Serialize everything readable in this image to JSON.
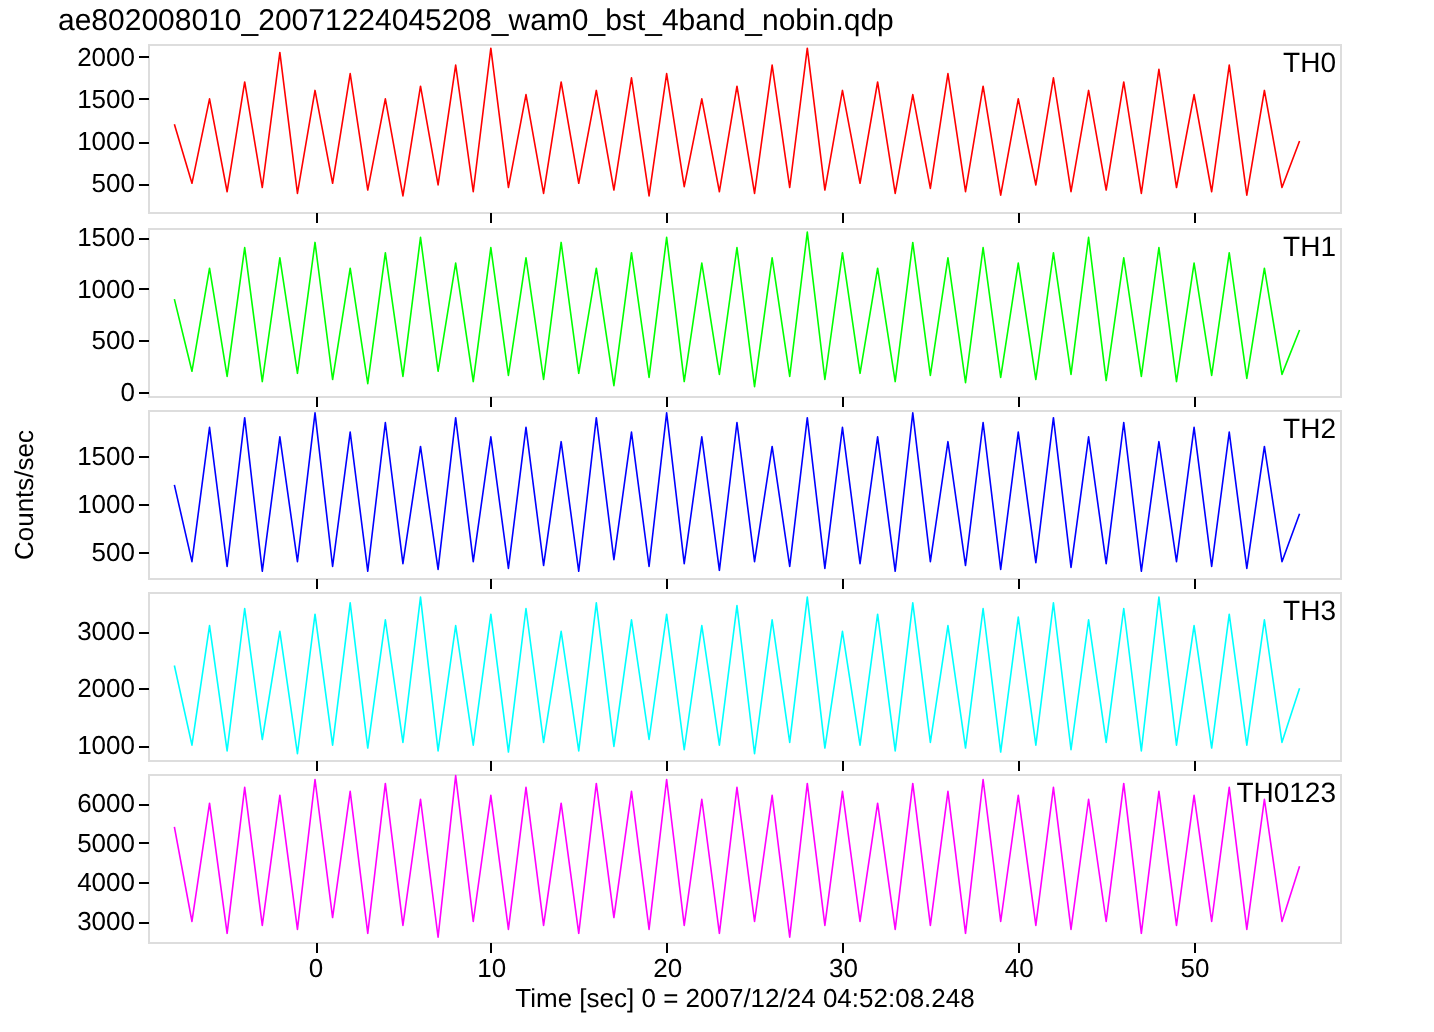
{
  "chart_data": [
    {
      "type": "line",
      "title": "ae802008010_20071224045208_wam0_bst_4band_nobin.qdp",
      "x": [
        -8,
        -7,
        -6,
        -5,
        -4,
        -3,
        -2,
        -1,
        0,
        1,
        2,
        3,
        4,
        5,
        6,
        7,
        8,
        9,
        10,
        11,
        12,
        13,
        14,
        15,
        16,
        17,
        18,
        19,
        20,
        21,
        22,
        23,
        24,
        25,
        26,
        27,
        28,
        29,
        30,
        31,
        32,
        33,
        34,
        35,
        36,
        37,
        38,
        39,
        40,
        41,
        42,
        43,
        44,
        45,
        46,
        47,
        48,
        49,
        50,
        51,
        52,
        53,
        54,
        55,
        56
      ],
      "xlim": [
        -9.5,
        58.3
      ],
      "xticks": [
        0,
        10,
        20,
        30,
        40,
        50
      ],
      "ylim": [
        160,
        2150
      ],
      "yticks": [
        500,
        1000,
        1500,
        2000
      ],
      "tick_labels": "y",
      "grid": false,
      "legend": false,
      "series": [
        {
          "name": "TH0",
          "color": "#ff0000",
          "values": [
            1200,
            500,
            1500,
            400,
            1700,
            450,
            2050,
            380,
            1600,
            500,
            1800,
            420,
            1500,
            350,
            1650,
            480,
            1900,
            400,
            2100,
            450,
            1550,
            380,
            1700,
            500,
            1600,
            420,
            1750,
            350,
            1800,
            460,
            1500,
            400,
            1650,
            380,
            1900,
            450,
            2100,
            420,
            1600,
            500,
            1700,
            380,
            1550,
            440,
            1800,
            400,
            1650,
            360,
            1500,
            480,
            1750,
            400,
            1600,
            420,
            1700,
            380,
            1850,
            450,
            1550,
            400,
            1900,
            360,
            1600,
            450,
            1000
          ]
        }
      ]
    },
    {
      "type": "line",
      "x": [
        -8,
        -7,
        -6,
        -5,
        -4,
        -3,
        -2,
        -1,
        0,
        1,
        2,
        3,
        4,
        5,
        6,
        7,
        8,
        9,
        10,
        11,
        12,
        13,
        14,
        15,
        16,
        17,
        18,
        19,
        20,
        21,
        22,
        23,
        24,
        25,
        26,
        27,
        28,
        29,
        30,
        31,
        32,
        33,
        34,
        35,
        36,
        37,
        38,
        39,
        40,
        41,
        42,
        43,
        44,
        45,
        46,
        47,
        48,
        49,
        50,
        51,
        52,
        53,
        54,
        55,
        56
      ],
      "xlim": [
        -9.5,
        58.3
      ],
      "xticks": [
        0,
        10,
        20,
        30,
        40,
        50
      ],
      "ylim": [
        -40,
        1590
      ],
      "yticks": [
        0,
        500,
        1000,
        1500
      ],
      "tick_labels": "y",
      "grid": false,
      "legend": false,
      "series": [
        {
          "name": "TH1",
          "color": "#00ff00",
          "values": [
            900,
            200,
            1200,
            150,
            1400,
            100,
            1300,
            180,
            1450,
            120,
            1200,
            80,
            1350,
            150,
            1500,
            200,
            1250,
            100,
            1400,
            160,
            1300,
            120,
            1450,
            180,
            1200,
            60,
            1350,
            140,
            1500,
            100,
            1250,
            170,
            1400,
            50,
            1300,
            150,
            1550,
            120,
            1350,
            180,
            1200,
            100,
            1450,
            160,
            1300,
            90,
            1400,
            140,
            1250,
            120,
            1350,
            170,
            1500,
            110,
            1300,
            150,
            1400,
            100,
            1250,
            160,
            1350,
            130,
            1200,
            170,
            600
          ]
        }
      ]
    },
    {
      "type": "line",
      "ylabel": "Counts/sec",
      "x": [
        -8,
        -7,
        -6,
        -5,
        -4,
        -3,
        -2,
        -1,
        0,
        1,
        2,
        3,
        4,
        5,
        6,
        7,
        8,
        9,
        10,
        11,
        12,
        13,
        14,
        15,
        16,
        17,
        18,
        19,
        20,
        21,
        22,
        23,
        24,
        25,
        26,
        27,
        28,
        29,
        30,
        31,
        32,
        33,
        34,
        35,
        36,
        37,
        38,
        39,
        40,
        41,
        42,
        43,
        44,
        45,
        46,
        47,
        48,
        49,
        50,
        51,
        52,
        53,
        54,
        55,
        56
      ],
      "xlim": [
        -9.5,
        58.3
      ],
      "xticks": [
        0,
        10,
        20,
        30,
        40,
        50
      ],
      "ylim": [
        230,
        1980
      ],
      "yticks": [
        500,
        1000,
        1500
      ],
      "tick_labels": "y",
      "grid": false,
      "legend": false,
      "series": [
        {
          "name": "TH2",
          "color": "#0000ff",
          "values": [
            1200,
            400,
            1800,
            350,
            1900,
            300,
            1700,
            400,
            1950,
            350,
            1750,
            300,
            1850,
            380,
            1600,
            320,
            1900,
            400,
            1700,
            330,
            1800,
            360,
            1650,
            300,
            1900,
            420,
            1750,
            350,
            1950,
            380,
            1700,
            310,
            1850,
            400,
            1600,
            350,
            1900,
            330,
            1800,
            380,
            1700,
            300,
            1950,
            400,
            1650,
            360,
            1850,
            320,
            1750,
            390,
            1900,
            340,
            1700,
            380,
            1850,
            300,
            1650,
            400,
            1800,
            350,
            1750,
            330,
            1600,
            400,
            900
          ]
        }
      ]
    },
    {
      "type": "line",
      "x": [
        -8,
        -7,
        -6,
        -5,
        -4,
        -3,
        -2,
        -1,
        0,
        1,
        2,
        3,
        4,
        5,
        6,
        7,
        8,
        9,
        10,
        11,
        12,
        13,
        14,
        15,
        16,
        17,
        18,
        19,
        20,
        21,
        22,
        23,
        24,
        25,
        26,
        27,
        28,
        29,
        30,
        31,
        32,
        33,
        34,
        35,
        36,
        37,
        38,
        39,
        40,
        41,
        42,
        43,
        44,
        45,
        46,
        47,
        48,
        49,
        50,
        51,
        52,
        53,
        54,
        55,
        56
      ],
      "xlim": [
        -9.5,
        58.3
      ],
      "xticks": [
        0,
        10,
        20,
        30,
        40,
        50
      ],
      "ylim": [
        740,
        3690
      ],
      "yticks": [
        1000,
        2000,
        3000
      ],
      "tick_labels": "y",
      "grid": false,
      "legend": false,
      "series": [
        {
          "name": "TH3",
          "color": "#00ffff",
          "values": [
            2400,
            1000,
            3100,
            900,
            3400,
            1100,
            3000,
            850,
            3300,
            1000,
            3500,
            950,
            3200,
            1050,
            3600,
            900,
            3100,
            1000,
            3300,
            880,
            3400,
            1050,
            3000,
            900,
            3500,
            980,
            3200,
            1100,
            3300,
            920,
            3100,
            1000,
            3450,
            850,
            3200,
            1050,
            3600,
            950,
            3000,
            1000,
            3300,
            900,
            3500,
            1050,
            3100,
            950,
            3400,
            880,
            3250,
            1000,
            3500,
            920,
            3200,
            1050,
            3400,
            900,
            3600,
            1000,
            3100,
            950,
            3300,
            1000,
            3200,
            1050,
            2000
          ]
        }
      ]
    },
    {
      "type": "line",
      "xlabel": "Time [sec] 0 = 2007/12/24 04:52:08.248",
      "x": [
        -8,
        -7,
        -6,
        -5,
        -4,
        -3,
        -2,
        -1,
        0,
        1,
        2,
        3,
        4,
        5,
        6,
        7,
        8,
        9,
        10,
        11,
        12,
        13,
        14,
        15,
        16,
        17,
        18,
        19,
        20,
        21,
        22,
        23,
        24,
        25,
        26,
        27,
        28,
        29,
        30,
        31,
        32,
        33,
        34,
        35,
        36,
        37,
        38,
        39,
        40,
        41,
        42,
        43,
        44,
        45,
        46,
        47,
        48,
        49,
        50,
        51,
        52,
        53,
        54,
        55,
        56
      ],
      "xlim": [
        -9.5,
        58.3
      ],
      "xticks": [
        0,
        10,
        20,
        30,
        40,
        50
      ],
      "ylim": [
        2480,
        6740
      ],
      "yticks": [
        3000,
        4000,
        5000,
        6000
      ],
      "grid": false,
      "legend": false,
      "series": [
        {
          "name": "TH0123",
          "color": "#ff00ff",
          "values": [
            5400,
            3000,
            6000,
            2700,
            6400,
            2900,
            6200,
            2800,
            6600,
            3100,
            6300,
            2700,
            6500,
            2900,
            6100,
            2600,
            6700,
            3000,
            6200,
            2800,
            6400,
            2900,
            6000,
            2700,
            6500,
            3100,
            6300,
            2800,
            6600,
            2900,
            6100,
            2700,
            6400,
            3000,
            6200,
            2600,
            6500,
            2900,
            6300,
            3000,
            6000,
            2800,
            6500,
            2900,
            6300,
            2700,
            6600,
            3000,
            6200,
            2900,
            6400,
            2800,
            6100,
            3000,
            6500,
            2700,
            6300,
            2900,
            6200,
            3000,
            6400,
            2800,
            6100,
            3000,
            4400
          ]
        }
      ]
    }
  ]
}
